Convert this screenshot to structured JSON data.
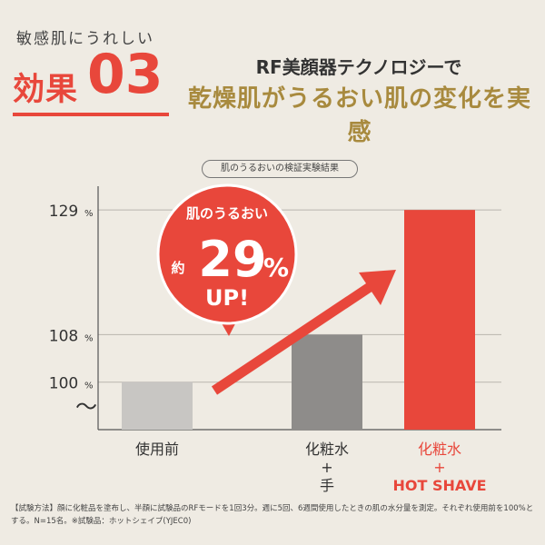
{
  "header": {
    "eyebrow": "敏感肌にうれしい",
    "effect_label": "効果",
    "effect_number": "03",
    "headline_line1": "RF美顔器テクノロジーで",
    "headline_line2": "乾燥肌がうるおい肌の変化を実感"
  },
  "chart_badge": "肌のうるおいの検証実験結果",
  "callout": {
    "line1": "肌のうるおい",
    "prefix": "約",
    "value": "29",
    "unit": "%",
    "line3": "UP!"
  },
  "colors": {
    "accent": "#e8473b",
    "gold": "#a88a3e",
    "bar_light": "#c8c6c3",
    "bar_mid": "#8e8c8a",
    "background": "#efebe3"
  },
  "chart_data": {
    "type": "bar",
    "categories": [
      "使用前",
      "化粧水+手",
      "化粧水+HOT SHAVE"
    ],
    "category_lines": [
      [
        "使用前"
      ],
      [
        "化粧水",
        "+",
        "手"
      ],
      [
        "化粧水",
        "+",
        "HOT SHAVE"
      ]
    ],
    "values": [
      100,
      108,
      129
    ],
    "y_ticks": [
      100,
      108,
      129
    ],
    "y_tick_labels": [
      "100",
      "108",
      "129"
    ],
    "y_unit": "%",
    "axis_break": "〜",
    "ylim": [
      92,
      133
    ],
    "grid": true,
    "bar_colors": [
      "#c8c6c3",
      "#8e8c8a",
      "#e8473b"
    ]
  },
  "footnote": "【試験方法】顔に化粧品を塗布し、半顔に試験品のRFモードを1回3分。週に5回、6週間使用したときの肌の水分量を測定。それぞれ使用前を100%とする。N=15名。※試験品：ホットシェイプ(YJEC0)"
}
